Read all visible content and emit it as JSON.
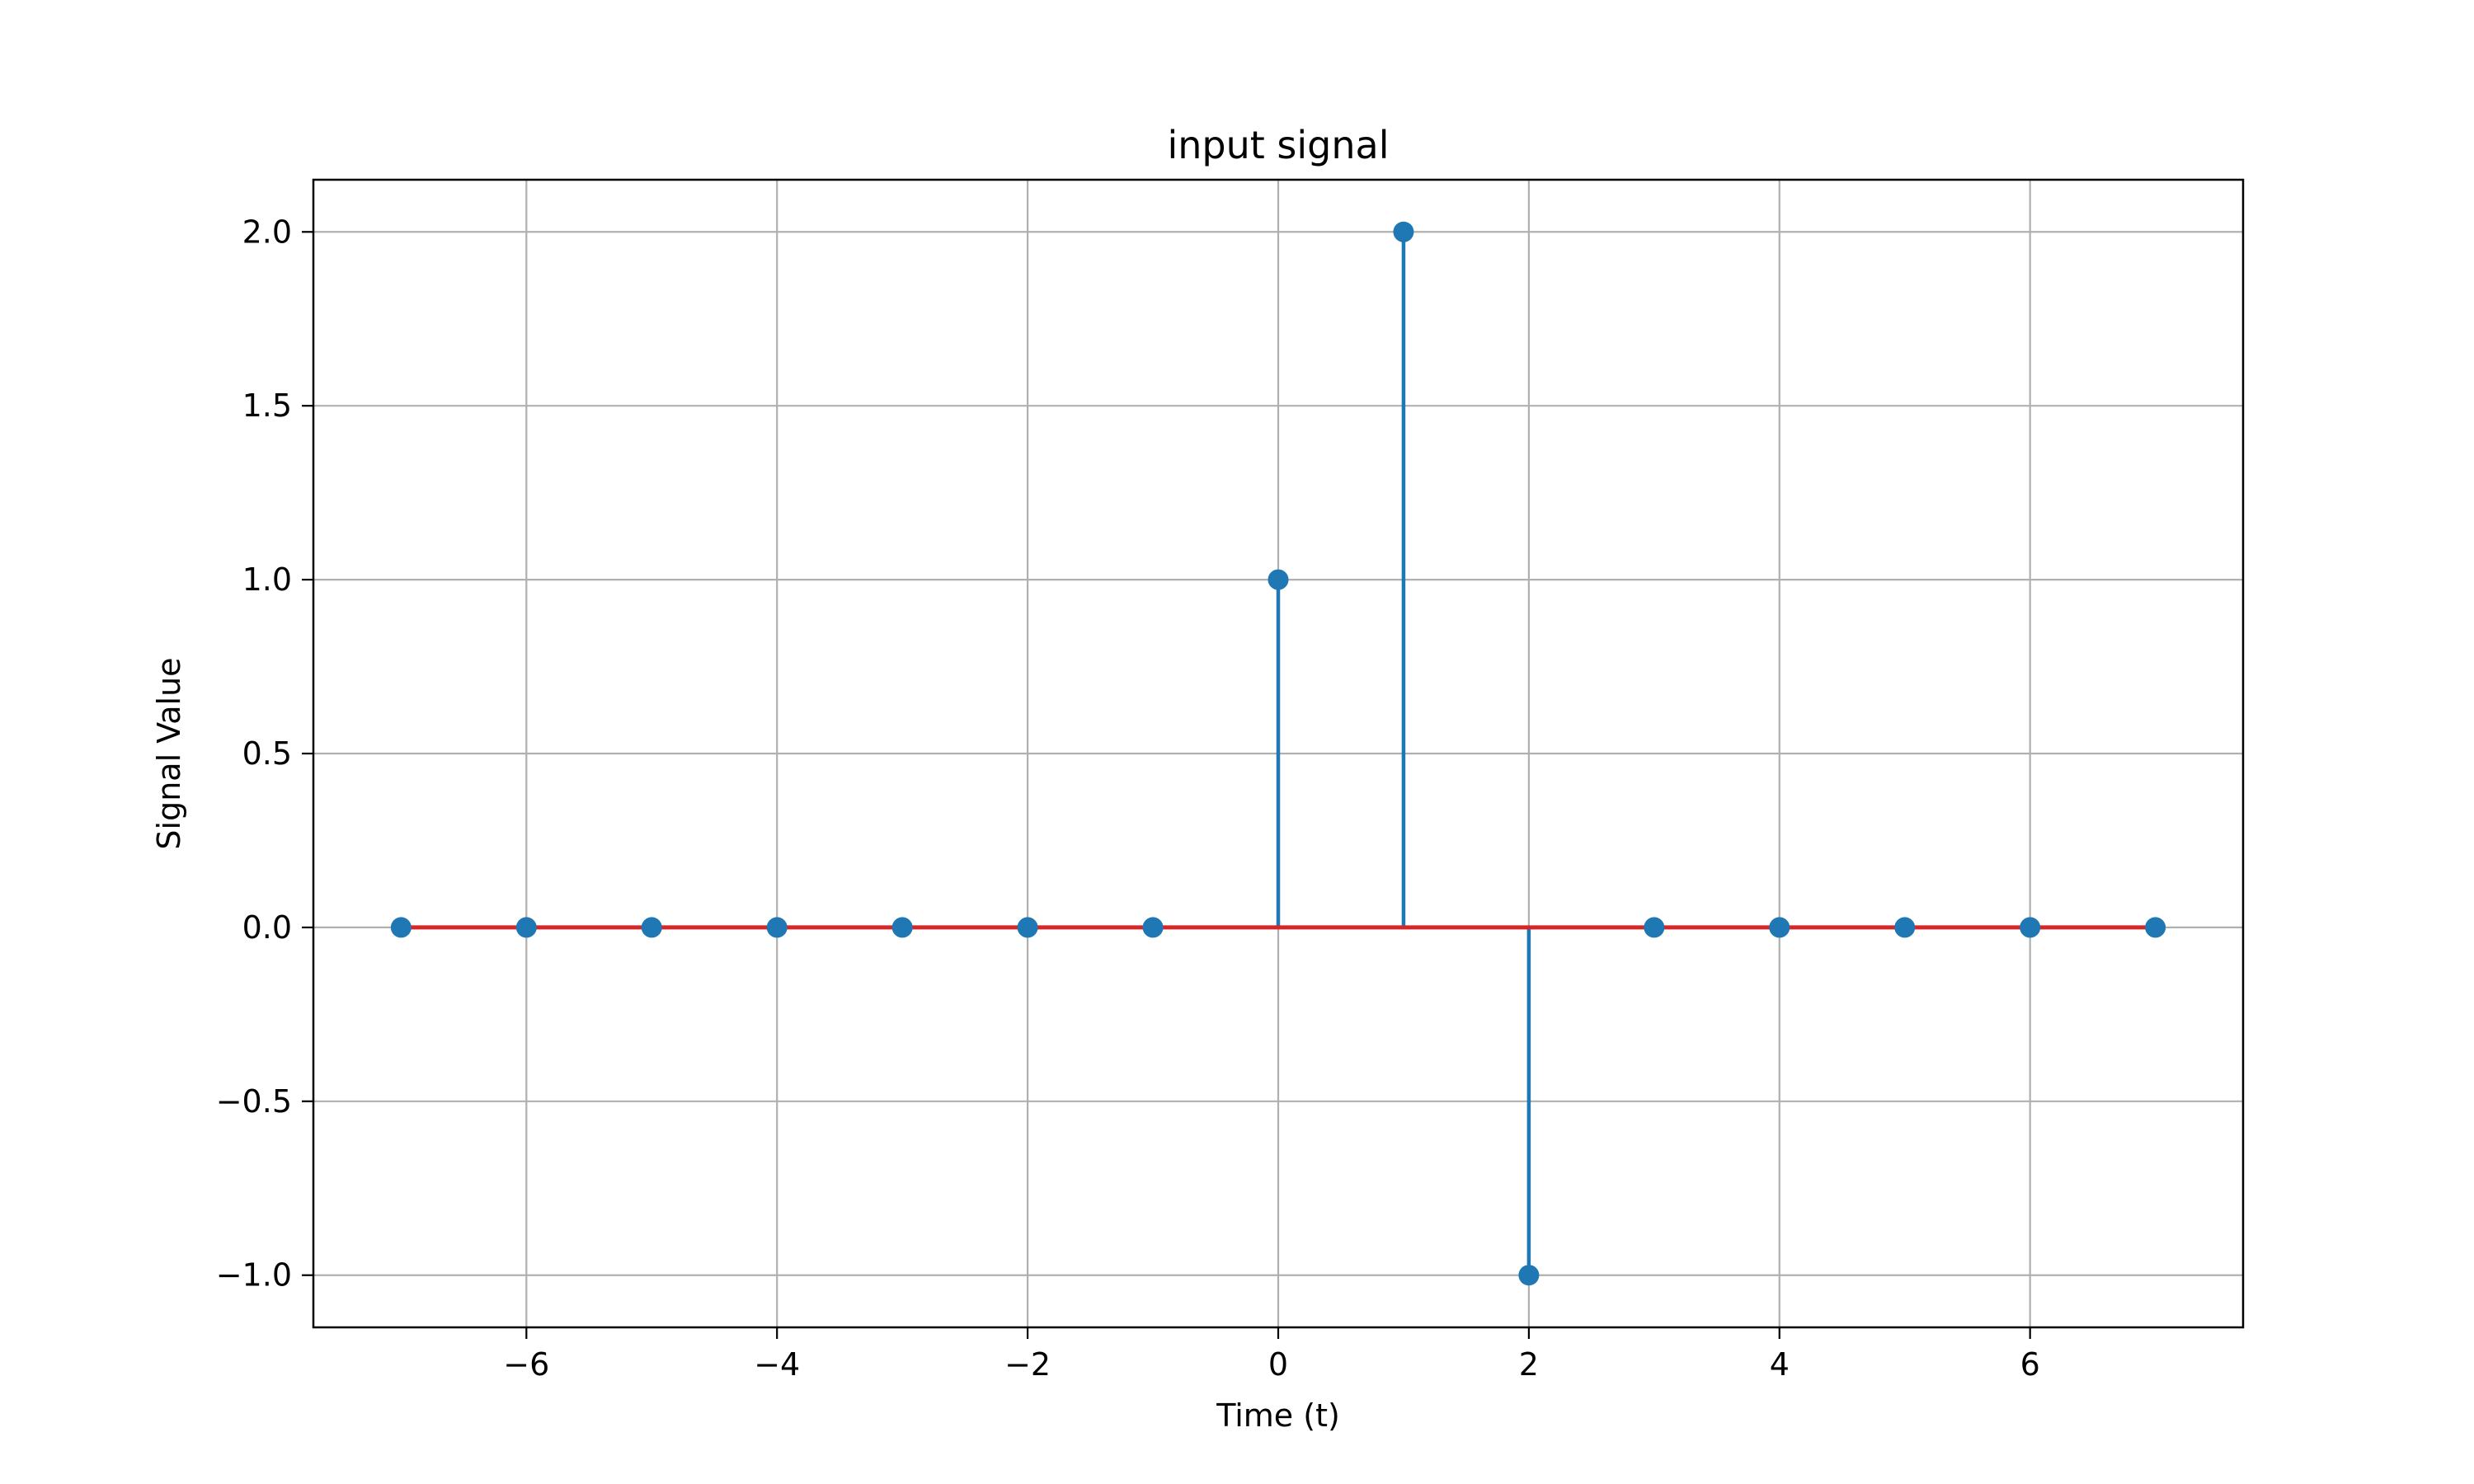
{
  "chart_data": {
    "type": "stem",
    "title": "input signal",
    "xlabel": "Time (t)",
    "ylabel": "Signal Value",
    "xlim": [
      -7.7,
      7.7
    ],
    "ylim": [
      -1.15,
      2.15
    ],
    "xticks": [
      -6,
      -4,
      -2,
      0,
      2,
      4,
      6
    ],
    "xtick_labels": [
      "−6",
      "−4",
      "−2",
      "0",
      "2",
      "4",
      "6"
    ],
    "yticks": [
      -1.0,
      -0.5,
      0.0,
      0.5,
      1.0,
      1.5,
      2.0
    ],
    "ytick_labels": [
      "−1.0",
      "−0.5",
      "0.0",
      "0.5",
      "1.0",
      "1.5",
      "2.0"
    ],
    "grid": true,
    "x": [
      -7,
      -6,
      -5,
      -4,
      -3,
      -2,
      -1,
      0,
      1,
      2,
      3,
      4,
      5,
      6,
      7
    ],
    "values": [
      0,
      0,
      0,
      0,
      0,
      0,
      0,
      1,
      2,
      -1,
      0,
      0,
      0,
      0,
      0
    ],
    "colors": {
      "stem": "#1f77b4",
      "marker": "#1f77b4",
      "baseline": "#d62728",
      "grid": "#b0b0b0",
      "frame": "#000000"
    }
  }
}
